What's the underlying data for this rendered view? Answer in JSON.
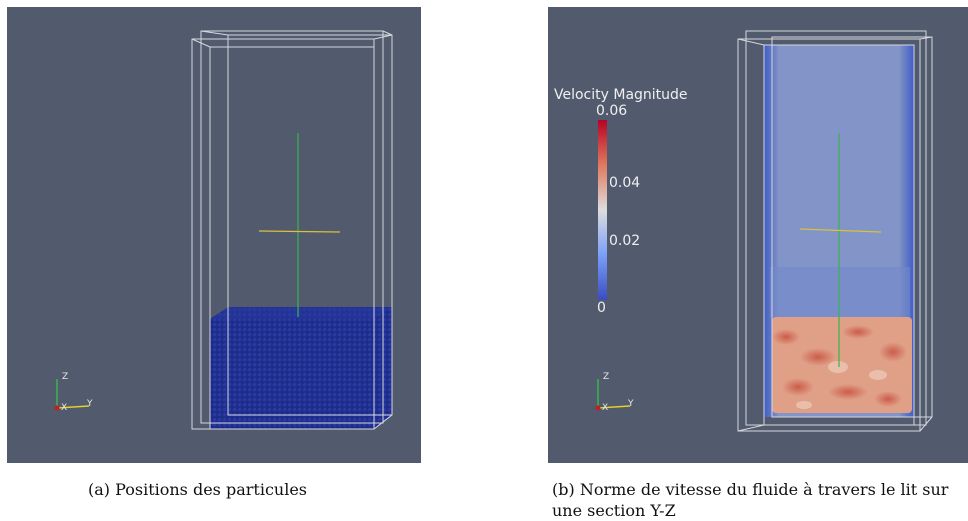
{
  "figure_a": {
    "caption": "(a) Positions des particules",
    "axes_labels": {
      "z": "Z",
      "y": "Y",
      "x": "X"
    }
  },
  "figure_b": {
    "caption": "(b) Norme de vitesse du fluide à travers le lit sur une section Y-Z",
    "axes_labels": {
      "z": "Z",
      "y": "Y",
      "x": "X"
    },
    "colorbar": {
      "title": "Velocity Magnitude",
      "ticks": [
        "0.06",
        "0.04",
        "0.02",
        "0"
      ],
      "range": [
        0,
        0.06
      ],
      "colors": {
        "low": "#3b4cc0",
        "mid": "#dddddd",
        "high": "#b40426"
      }
    }
  },
  "colors": {
    "background": "#525a6e",
    "particles": "#1c2a8a",
    "fluid_fast": "#d8705a",
    "fluid_slow": "#7e90c4"
  }
}
